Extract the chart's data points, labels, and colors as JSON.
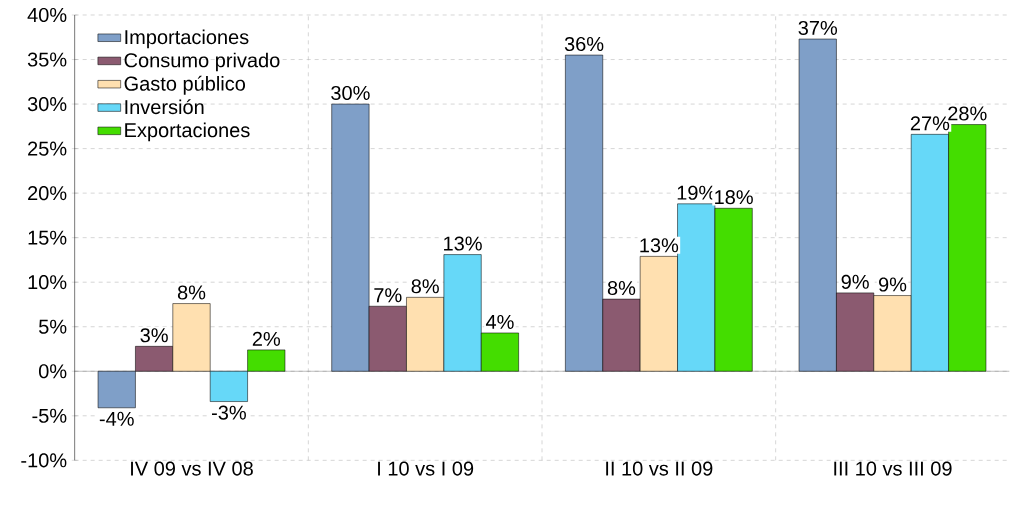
{
  "chart_data": {
    "type": "bar",
    "categories": [
      "IV 09 vs IV 08",
      "I 10 vs I 09",
      "II 10 vs II 09",
      "III 10 vs III 09"
    ],
    "series": [
      {
        "name": "Importaciones",
        "color": "#7f9fc8",
        "values": [
          -4.1,
          30.0,
          35.5,
          37.3
        ],
        "value_labels": [
          "-4%",
          "30%",
          "36%",
          "37%"
        ]
      },
      {
        "name": "Consumo privado",
        "color": "#8b5a70",
        "values": [
          2.8,
          7.3,
          8.1,
          8.8
        ],
        "value_labels": [
          "3%",
          "7%",
          "8%",
          "9%"
        ]
      },
      {
        "name": "Gasto público",
        "color": "#ffe0b0",
        "values": [
          7.6,
          8.3,
          12.9,
          8.5
        ],
        "value_labels": [
          "8%",
          "8%",
          "13%",
          "9%"
        ]
      },
      {
        "name": "Inversión",
        "color": "#66d8f8",
        "values": [
          -3.4,
          13.1,
          18.8,
          26.6
        ],
        "value_labels": [
          "-3%",
          "13%",
          "19%",
          "27%"
        ]
      },
      {
        "name": "Exportaciones",
        "color": "#44dd00",
        "values": [
          2.4,
          4.3,
          18.3,
          27.7
        ],
        "value_labels": [
          "2%",
          "4%",
          "18%",
          "28%"
        ]
      }
    ],
    "ylim": [
      -10,
      40
    ],
    "yticks": [
      {
        "value": -10,
        "label": "-10%"
      },
      {
        "value": -5,
        "label": "-5%"
      },
      {
        "value": 0,
        "label": "0%"
      },
      {
        "value": 5,
        "label": "5%"
      },
      {
        "value": 10,
        "label": "10%"
      },
      {
        "value": 15,
        "label": "15%"
      },
      {
        "value": 20,
        "label": "20%"
      },
      {
        "value": 25,
        "label": "25%"
      },
      {
        "value": 30,
        "label": "30%"
      },
      {
        "value": 35,
        "label": "35%"
      },
      {
        "value": 40,
        "label": "40%"
      }
    ],
    "grid": true,
    "legend": "top left"
  }
}
